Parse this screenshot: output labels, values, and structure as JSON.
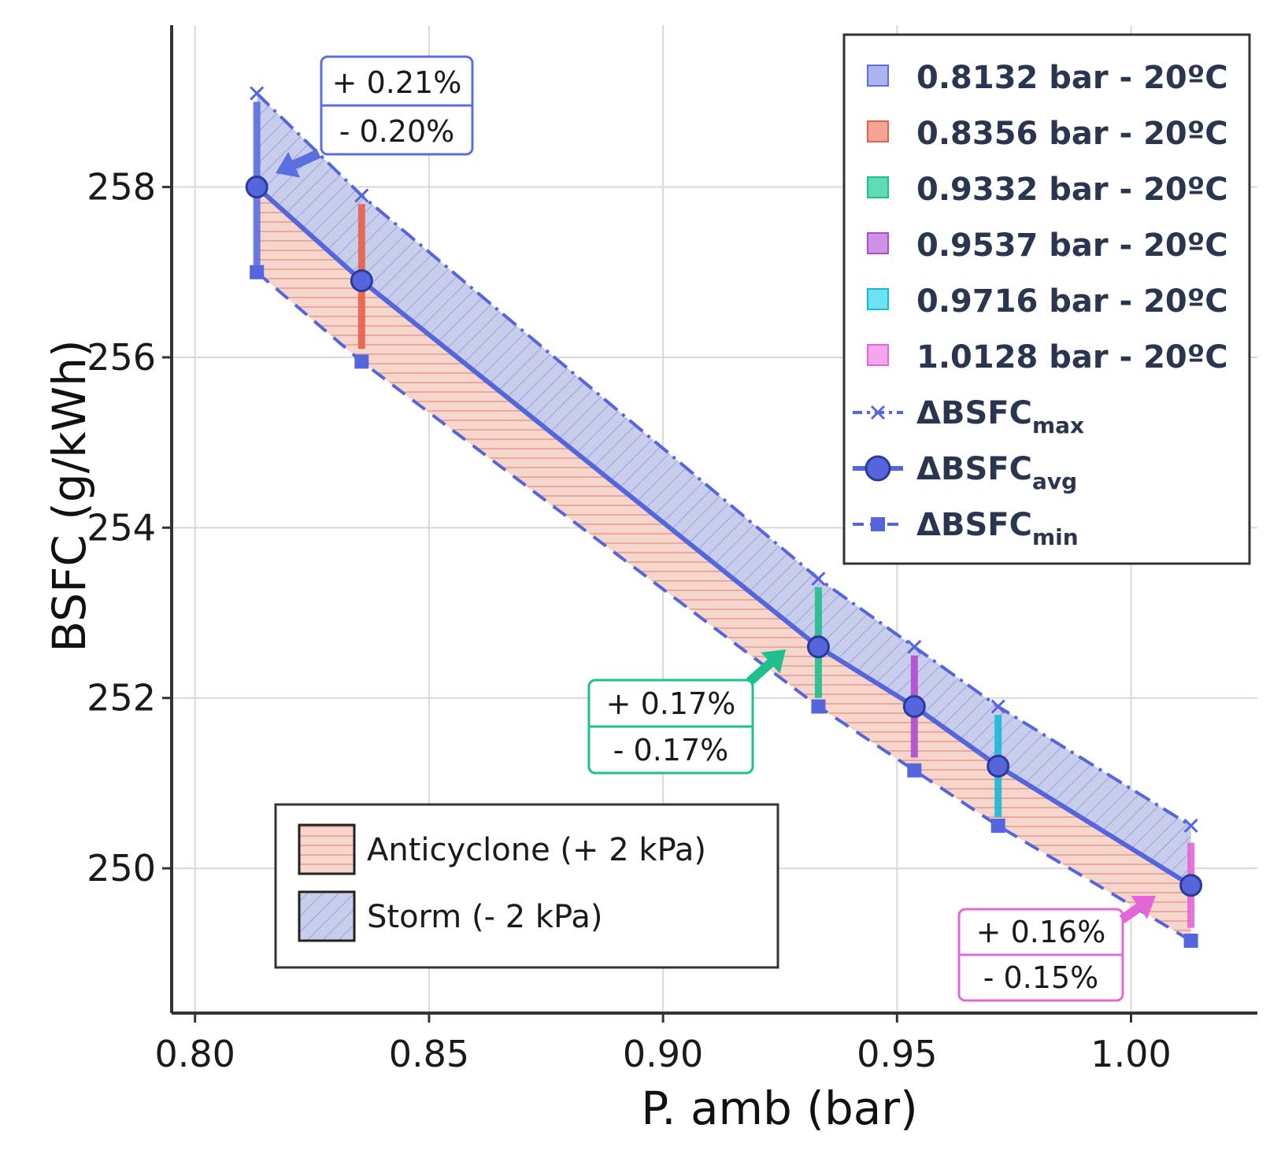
{
  "chart_data": {
    "type": "line",
    "xlabel": "P. amb (bar)",
    "ylabel": "BSFC (g/kWh)",
    "xlim": [
      0.795,
      1.027
    ],
    "ylim": [
      248.3,
      259.9
    ],
    "xticks": [
      0.8,
      0.85,
      0.9,
      0.95,
      1.0
    ],
    "xtick_labels": [
      "0.80",
      "0.85",
      "0.90",
      "0.95",
      "1.00"
    ],
    "yticks": [
      250,
      252,
      254,
      256,
      258
    ],
    "ytick_labels": [
      "250",
      "252",
      "254",
      "256",
      "258"
    ],
    "x": [
      0.8132,
      0.8356,
      0.9332,
      0.9537,
      0.9716,
      1.0128
    ],
    "series": [
      {
        "name": "ΔBSFC_max",
        "style": "dash-dot",
        "marker": "x",
        "values": [
          259.1,
          257.9,
          253.4,
          252.6,
          251.9,
          250.5
        ]
      },
      {
        "name": "ΔBSFC_avg",
        "style": "solid",
        "marker": "circle",
        "values": [
          258.0,
          256.9,
          252.6,
          251.9,
          251.2,
          249.8
        ]
      },
      {
        "name": "ΔBSFC_min",
        "style": "dashed",
        "marker": "square",
        "values": [
          257.0,
          255.95,
          251.9,
          251.15,
          250.5,
          249.15
        ]
      }
    ],
    "error_bars": [
      {
        "label": "0.8132 bar - 20ºC",
        "x": 0.8132,
        "low": 257.0,
        "high": 259.0,
        "color": "#5a6ee0"
      },
      {
        "label": "0.8356 bar - 20ºC",
        "x": 0.8356,
        "low": 256.1,
        "high": 257.8,
        "color": "#e8604a"
      },
      {
        "label": "0.9332 bar - 20ºC",
        "x": 0.9332,
        "low": 252.0,
        "high": 253.3,
        "color": "#1fbf8f"
      },
      {
        "label": "0.9537 bar - 20ºC",
        "x": 0.9537,
        "low": 251.3,
        "high": 252.5,
        "color": "#b04cd0"
      },
      {
        "label": "0.9716 bar - 20ºC",
        "x": 0.9716,
        "low": 250.6,
        "high": 251.8,
        "color": "#1ab8d8"
      },
      {
        "label": "1.0128 bar - 20ºC",
        "x": 1.0128,
        "low": 249.3,
        "high": 250.3,
        "color": "#e466d8"
      }
    ],
    "bands": [
      {
        "label": "Anticyclone (+ 2 kPa)",
        "between": [
          "ΔBSFC_min",
          "ΔBSFC_avg"
        ],
        "color": "#f4c9bc"
      },
      {
        "label": "Storm (- 2 kPa)",
        "between": [
          "ΔBSFC_avg",
          "ΔBSFC_max"
        ],
        "color": "#c7cbea"
      }
    ],
    "legend_main": {
      "placement": "top-right",
      "entries": [
        {
          "label": "0.8132 bar - 20ºC",
          "color": "#aab4ee",
          "border": "#5a6ee0"
        },
        {
          "label": "0.8356 bar - 20ºC",
          "color": "#f5a595",
          "border": "#e8604a"
        },
        {
          "label": "0.9332 bar - 20ºC",
          "color": "#5fdcb5",
          "border": "#1fbf8f"
        },
        {
          "label": "0.9537 bar - 20ºC",
          "color": "#cf90e8",
          "border": "#b04cd0"
        },
        {
          "label": "0.9716 bar - 20ºC",
          "color": "#6fe2f2",
          "border": "#1ab8d8"
        },
        {
          "label": "1.0128 bar - 20ºC",
          "color": "#f5a6ee",
          "border": "#e466d8"
        }
      ],
      "line_entries": [
        {
          "base": "ΔBSFC",
          "sub": "max",
          "marker": "x",
          "style": "dash-dot"
        },
        {
          "base": "ΔBSFC",
          "sub": "avg",
          "marker": "circle",
          "style": "solid"
        },
        {
          "base": "ΔBSFC",
          "sub": "min",
          "marker": "square",
          "style": "dashed"
        }
      ]
    },
    "legend_bands": {
      "placement": "bottom-left",
      "entries": [
        "Anticyclone (+ 2 kPa)",
        "Storm (- 2 kPa)"
      ]
    },
    "annotations": [
      {
        "top": "+ 0.21%",
        "bottom": "- 0.20%",
        "color": "#5a6ee0",
        "points_to": [
          0.8132,
          258.0
        ]
      },
      {
        "top": "+ 0.17%",
        "bottom": "- 0.17%",
        "color": "#1fbf8f",
        "points_to": [
          0.9332,
          252.6
        ]
      },
      {
        "top": "+ 0.16%",
        "bottom": "- 0.15%",
        "color": "#e466d8",
        "points_to": [
          1.0128,
          249.8
        ]
      }
    ]
  },
  "colors": {
    "main_line": "#5566dd",
    "axis": "#333333",
    "grid": "#d9d9d9"
  }
}
